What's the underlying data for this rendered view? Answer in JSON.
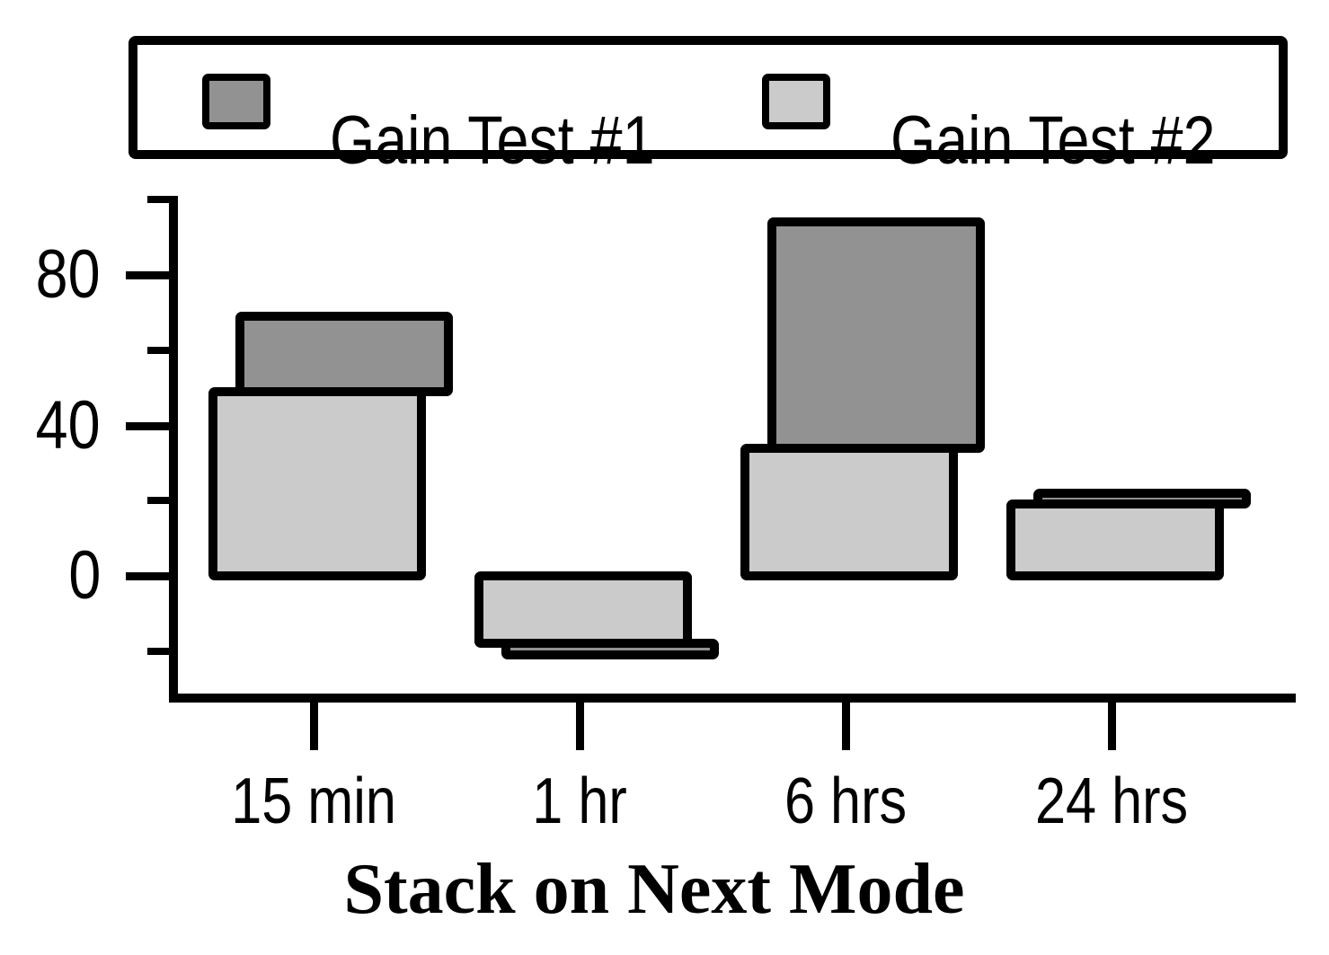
{
  "legend": {
    "items": [
      {
        "label": "Gain Test #1",
        "color": "#929292"
      },
      {
        "label": "Gain Test #2",
        "color": "#cbcbcb"
      }
    ]
  },
  "axes": {
    "y": {
      "major_ticks": [
        {
          "value": 80,
          "label": "80"
        },
        {
          "value": 40,
          "label": "40"
        },
        {
          "value": 0,
          "label": "0"
        }
      ],
      "minor_tick_values": [
        100,
        60,
        20,
        -20
      ],
      "range": [
        -33,
        100
      ]
    },
    "x": {
      "title": "Stack on Next Mode",
      "categories": [
        "15 min",
        "1 hr",
        "6 hrs",
        "24 hrs"
      ]
    }
  },
  "chart_data": {
    "type": "bar",
    "stacking": "on-next",
    "note": "Gain Test #1 bars are stacked on top of Gain Test #2 bars (baseline of series 1 = value of series 2)",
    "categories": [
      "15 min",
      "1 hr",
      "6 hrs",
      "24 hrs"
    ],
    "series": [
      {
        "name": "Gain Test #1",
        "color": "#929292",
        "values": [
          20,
          -3,
          60,
          3
        ],
        "stacked_tops": [
          69,
          -21,
          94,
          22
        ]
      },
      {
        "name": "Gain Test #2",
        "color": "#cbcbcb",
        "values": [
          49,
          -18,
          34,
          19
        ]
      }
    ],
    "title": "",
    "xlabel": "Stack on Next Mode",
    "ylabel": "",
    "ylim": [
      -33,
      100
    ],
    "yticks_major": [
      0,
      40,
      80
    ],
    "yticks_minor": [
      -20,
      20,
      60,
      100
    ],
    "grid": false,
    "legend_position": "top"
  }
}
